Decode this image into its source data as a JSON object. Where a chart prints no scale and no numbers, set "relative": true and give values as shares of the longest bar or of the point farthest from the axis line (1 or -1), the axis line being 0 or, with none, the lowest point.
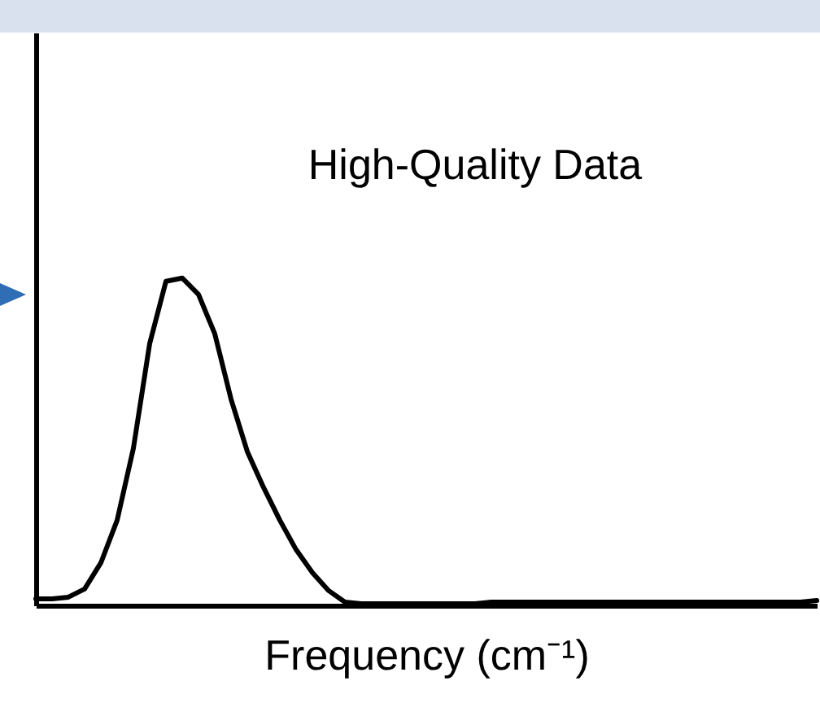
{
  "chart_data": {
    "type": "line",
    "title": "High-Quality Data",
    "xlabel": "Frequency (cm⁻¹)",
    "relative": true,
    "color": "#000000",
    "categories": [
      null,
      null,
      null,
      null,
      null,
      null,
      null,
      null,
      null,
      null,
      null,
      null,
      null,
      null,
      null,
      null,
      null,
      null,
      null,
      null,
      null,
      null,
      null,
      null,
      null,
      null,
      null,
      null,
      null,
      null,
      null,
      null,
      null,
      null,
      null,
      null,
      null,
      null,
      null,
      null,
      null,
      null,
      null,
      null,
      null,
      null,
      null,
      null,
      null
    ],
    "values": [
      0.02,
      0.02,
      0.025,
      0.05,
      0.13,
      0.26,
      0.48,
      0.8,
      0.99,
      1.0,
      0.95,
      0.83,
      0.63,
      0.47,
      0.36,
      0.26,
      0.17,
      0.1,
      0.045,
      0.01,
      0.005,
      0.005,
      0.005,
      0.005,
      0.005,
      0.005,
      0.005,
      0.005,
      0.01,
      0.01,
      0.01,
      0.01,
      0.01,
      0.01,
      0.01,
      0.01,
      0.01,
      0.01,
      0.01,
      0.01,
      0.01,
      0.01,
      0.01,
      0.01,
      0.01,
      0.01,
      0.01,
      0.01,
      0.015
    ],
    "grid": false,
    "marker": "none",
    "line_style": "solid"
  }
}
